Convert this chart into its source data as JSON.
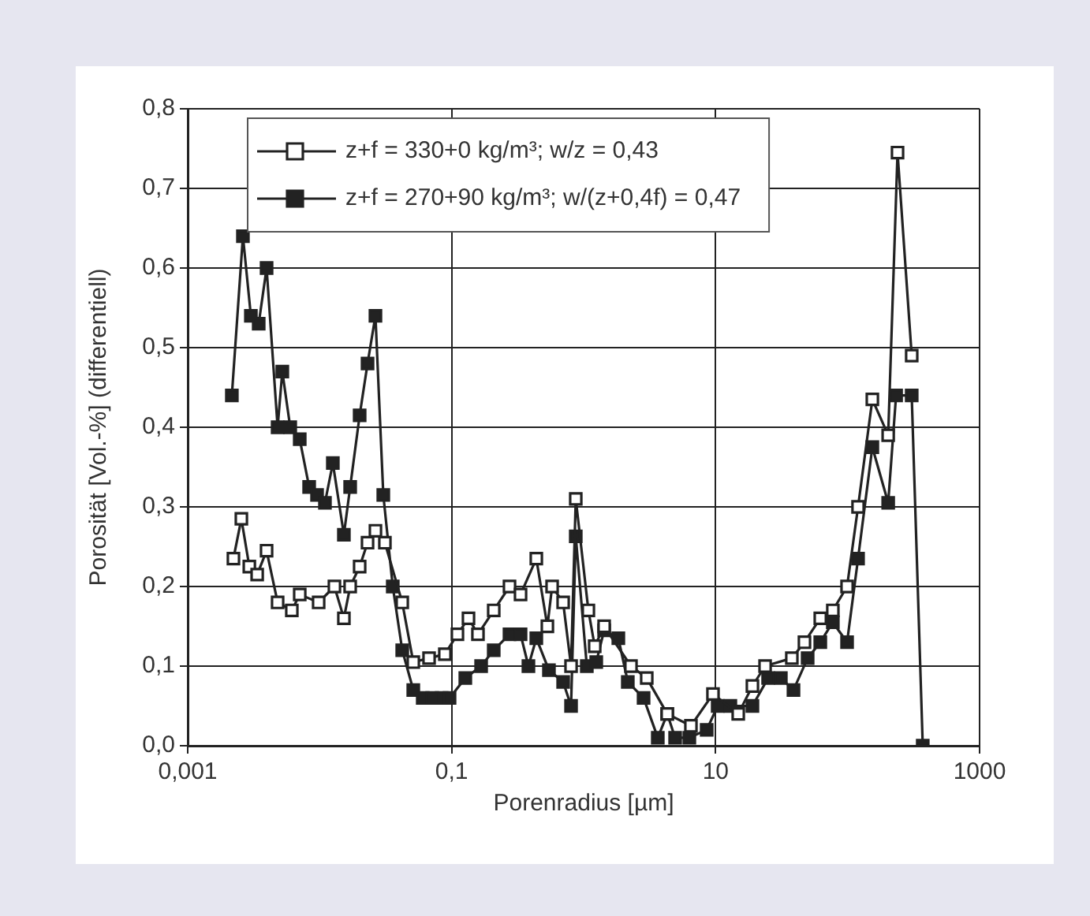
{
  "chart_data": {
    "type": "line",
    "xlabel": "Porenradius [µm]",
    "ylabel": "Porosität [Vol.-%] (differentiell)",
    "log": "x",
    "xlim": [
      0.001,
      1000
    ],
    "xticks": [
      {
        "value": 0.001,
        "label": "0,001"
      },
      {
        "value": 0.1,
        "label": "0,1"
      },
      {
        "value": 10,
        "label": "10"
      },
      {
        "value": 1000,
        "label": "1000"
      }
    ],
    "ylim": [
      0,
      0.8
    ],
    "yticks": [
      {
        "value": 0,
        "label": "0,0"
      },
      {
        "value": 0.1,
        "label": "0,1"
      },
      {
        "value": 0.2,
        "label": "0,2"
      },
      {
        "value": 0.3,
        "label": "0,3"
      },
      {
        "value": 0.4,
        "label": "0,4"
      },
      {
        "value": 0.5,
        "label": "0,5"
      },
      {
        "value": 0.6,
        "label": "0,6"
      },
      {
        "value": 0.7,
        "label": "0,7"
      },
      {
        "value": 0.8,
        "label": "0,8"
      }
    ],
    "grid": true,
    "legend": "top left",
    "marker": "square",
    "line_style": "solid",
    "series": [
      {
        "name": "z+f = 330+0 kg/m³; w/z = 0,43",
        "color": "#ffffff",
        "x": [
          0.00222,
          0.00255,
          0.00293,
          0.00336,
          0.00396,
          0.0048,
          0.00615,
          0.00706,
          0.00982,
          0.01293,
          0.01525,
          0.01702,
          0.02008,
          0.02305,
          0.02645,
          0.03119,
          0.04222,
          0.05119,
          0.06741,
          0.08877,
          0.1106,
          0.1341,
          0.1582,
          0.2083,
          0.2743,
          0.3326,
          0.438,
          0.5312,
          0.5768,
          0.6994,
          0.8028,
          0.8715,
          1.086,
          1.213,
          1.43,
          2.283,
          3.007,
          4.301,
          6.499,
          9.55,
          14.84,
          19.0,
          23.7,
          37.8,
          47.1,
          62.1,
          77.3,
          99.1,
          120,
          154,
          203,
          239,
          306
        ],
        "values": [
          0.235,
          0.285,
          0.225,
          0.215,
          0.245,
          0.18,
          0.17,
          0.19,
          0.18,
          0.2,
          0.16,
          0.2,
          0.225,
          0.255,
          0.27,
          0.255,
          0.18,
          0.105,
          0.11,
          0.115,
          0.14,
          0.16,
          0.14,
          0.17,
          0.2,
          0.19,
          0.235,
          0.15,
          0.2,
          0.18,
          0.1,
          0.31,
          0.17,
          0.125,
          0.15,
          0.1,
          0.085,
          0.04,
          0.025,
          0.065,
          0.04,
          0.075,
          0.1,
          0.11,
          0.13,
          0.16,
          0.17,
          0.2,
          0.3,
          0.435,
          0.39,
          0.745,
          0.49
        ]
      },
      {
        "name": "z+f = 270+90 kg/m³; w/(z+0,4f) = 0,47",
        "color": "#222222",
        "x": [
          0.00216,
          0.00262,
          0.00301,
          0.00345,
          0.00396,
          0.0048,
          0.00521,
          0.00598,
          0.00706,
          0.00832,
          0.00955,
          0.01096,
          0.01258,
          0.01525,
          0.01702,
          0.02008,
          0.02305,
          0.02645,
          0.03034,
          0.03579,
          0.04222,
          0.05119,
          0.06037,
          0.07123,
          0.08402,
          0.09638,
          0.1269,
          0.1672,
          0.2083,
          0.2743,
          0.3326,
          0.3816,
          0.438,
          0.5458,
          0.6994,
          0.8028,
          0.8715,
          1.057,
          1.246,
          1.43,
          1.832,
          2.161,
          2.846,
          3.646,
          4.301,
          4.934,
          6.322,
          8.555,
          10.37,
          12.93,
          19.0,
          25.0,
          31.2,
          38.9,
          49.8,
          62.1,
          77.3,
          99.1,
          120,
          154,
          203,
          233,
          306,
          371
        ],
        "values": [
          0.44,
          0.64,
          0.54,
          0.53,
          0.6,
          0.4,
          0.47,
          0.4,
          0.385,
          0.325,
          0.315,
          0.305,
          0.355,
          0.265,
          0.325,
          0.415,
          0.48,
          0.54,
          0.315,
          0.2,
          0.12,
          0.07,
          0.06,
          0.06,
          0.06,
          0.06,
          0.085,
          0.1,
          0.12,
          0.14,
          0.14,
          0.1,
          0.135,
          0.095,
          0.08,
          0.05,
          0.263,
          0.1,
          0.105,
          0.145,
          0.135,
          0.08,
          0.06,
          0.01,
          0.04,
          0.01,
          0.01,
          0.02,
          0.05,
          0.05,
          0.05,
          0.085,
          0.085,
          0.07,
          0.11,
          0.13,
          0.155,
          0.13,
          0.235,
          0.375,
          0.305,
          0.44,
          0.44,
          0
        ]
      }
    ]
  }
}
